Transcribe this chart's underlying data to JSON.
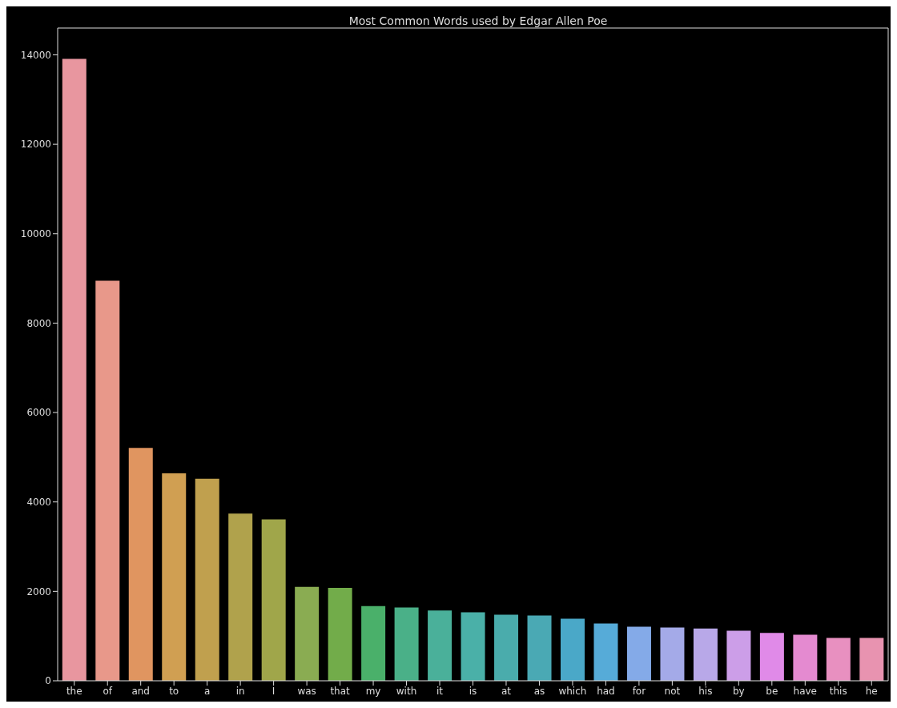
{
  "chart_data": {
    "type": "bar",
    "title": "Most Common Words used by Edgar Allen Poe",
    "categories": [
      "the",
      "of",
      "and",
      "to",
      "a",
      "in",
      "I",
      "was",
      "that",
      "my",
      "with",
      "it",
      "is",
      "at",
      "as",
      "which",
      "had",
      "for",
      "not",
      "his",
      "by",
      "be",
      "have",
      "this",
      "he"
    ],
    "values": [
      13910,
      8950,
      5210,
      4640,
      4520,
      3740,
      3610,
      2100,
      2080,
      1670,
      1640,
      1570,
      1530,
      1480,
      1460,
      1390,
      1280,
      1210,
      1190,
      1170,
      1120,
      1070,
      1030,
      960,
      960
    ],
    "colors": [
      "#e8969f",
      "#e8988a",
      "#e09560",
      "#d09f52",
      "#c0a04e",
      "#b0a24c",
      "#a0a64a",
      "#8aac52",
      "#72ac4a",
      "#4ab06a",
      "#4ab088",
      "#4ab09a",
      "#4ab0a8",
      "#4aacac",
      "#4aa9b4",
      "#4aa8c8",
      "#56abd8",
      "#84aae8",
      "#a4aae8",
      "#b8a8e8",
      "#cc9ee8",
      "#e08ae8",
      "#e48ad0",
      "#e890c0",
      "#e893b0"
    ],
    "ylim": [
      0,
      14600
    ],
    "yticks": [
      0,
      2000,
      4000,
      6000,
      8000,
      10000,
      12000,
      14000
    ],
    "grid": false,
    "legend": false
  }
}
